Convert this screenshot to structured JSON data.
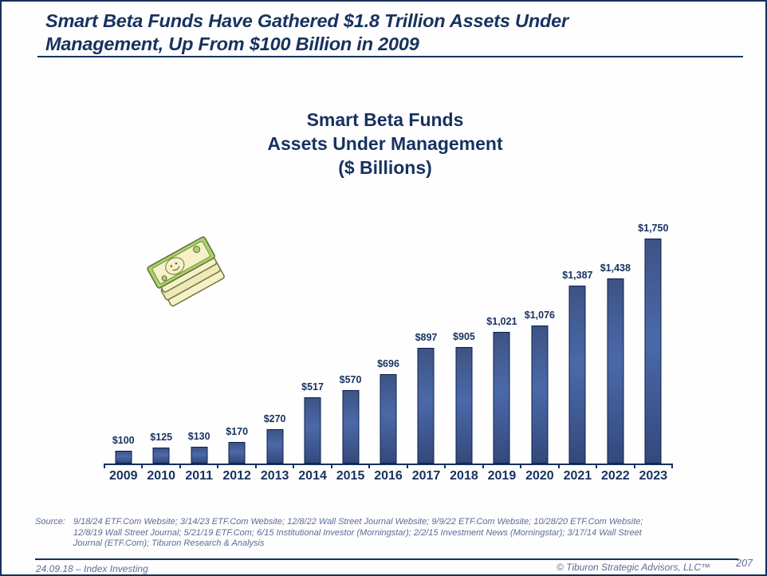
{
  "page": {
    "title_lines": [
      "Smart Beta Funds Have Gathered $1.8 Trillion Assets Under",
      "Management, Up From $100 Billion in 2009"
    ]
  },
  "chart_data": {
    "type": "bar",
    "title_lines": [
      "Smart Beta Funds",
      "Assets Under Management",
      "($ Billions)"
    ],
    "categories": [
      "2009",
      "2010",
      "2011",
      "2012",
      "2013",
      "2014",
      "2015",
      "2016",
      "2017",
      "2018",
      "2019",
      "2020",
      "2021",
      "2022",
      "2023"
    ],
    "values": [
      100,
      125,
      130,
      170,
      270,
      517,
      570,
      696,
      897,
      905,
      1021,
      1076,
      1387,
      1438,
      1750
    ],
    "value_labels": [
      "$100",
      "$125",
      "$130",
      "$170",
      "$270",
      "$517",
      "$570",
      "$696",
      "$897",
      "$905",
      "$1,021",
      "$1,076",
      "$1,387",
      "$1,438",
      "$1,750"
    ],
    "ylim": [
      0,
      1750
    ],
    "xlabel": "",
    "ylabel": "",
    "grid": false,
    "legend": "none",
    "bar_fill": "#4B69A9",
    "bar_border": "#0A1F4E",
    "axis_color": "#16305C",
    "label_color": "#17325F",
    "icon": "money-stack-icon"
  },
  "source": {
    "label": "Source:",
    "lines": [
      "9/18/24 ETF.Com Website; 3/14/23 ETF.Com Website; 12/8/22 Wall Street Journal Website; 9/9/22 ETF.Com Website; 10/28/20 ETF.Com Website;",
      "12/8/19 Wall Street Journal; 5/21/19 ETF.Com; 6/15 Institutional Investor (Morningstar); 2/2/15 Investment News (Morningstar); 3/17/14 Wall Street",
      "Journal (ETF.Com); Tiburon Research & Analysis"
    ]
  },
  "footer": {
    "date_topic": "24.09.18 – Index Investing",
    "copyright": "© Tiburon Strategic Advisors, LLC™",
    "page_number": "207"
  }
}
